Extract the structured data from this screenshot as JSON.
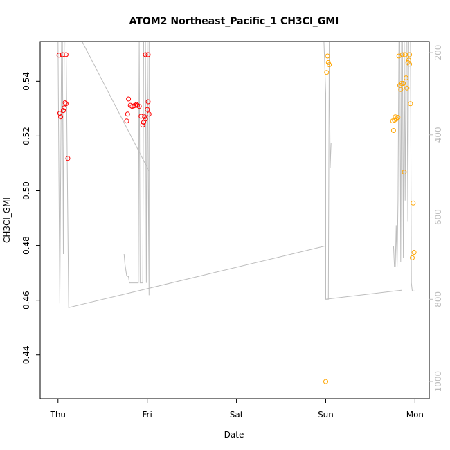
{
  "chart_data": {
    "type": "scatter",
    "title": "ATOM2 Northeast_Pacific_1 CH3Cl_GMI",
    "xlabel": "Date",
    "ylabel": "CH3Cl_GMI",
    "x_ticks": [
      "Thu",
      "Fri",
      "Sat",
      "Sun",
      "Mon"
    ],
    "xlim_days": [
      -0.2,
      4.16
    ],
    "ylim": [
      0.424,
      0.5545
    ],
    "y_ticks": [
      0.44,
      0.46,
      0.48,
      0.5,
      0.52,
      0.54
    ],
    "y2_label_ticks": [
      200,
      400,
      600,
      800,
      1000
    ],
    "y2lim": [
      1042,
      173
    ],
    "series": [
      {
        "color": "#ff0000",
        "points": [
          [
            0.01,
            0.5495
          ],
          [
            0.05,
            0.5497
          ],
          [
            0.09,
            0.5497
          ],
          [
            0.02,
            0.5283
          ],
          [
            0.03,
            0.527
          ],
          [
            0.06,
            0.5293
          ],
          [
            0.07,
            0.5303
          ],
          [
            0.08,
            0.5322
          ],
          [
            0.09,
            0.5318
          ],
          [
            0.11,
            0.5118
          ],
          [
            0.98,
            0.5497
          ],
          [
            1.01,
            0.5497
          ],
          [
            0.77,
            0.5255
          ],
          [
            0.78,
            0.528
          ],
          [
            0.79,
            0.5335
          ],
          [
            0.81,
            0.5312
          ],
          [
            0.83,
            0.5308
          ],
          [
            0.85,
            0.531
          ],
          [
            0.87,
            0.5312
          ],
          [
            0.88,
            0.5315
          ],
          [
            0.89,
            0.5312
          ],
          [
            0.91,
            0.5308
          ],
          [
            0.93,
            0.5272
          ],
          [
            0.95,
            0.524
          ],
          [
            0.96,
            0.525
          ],
          [
            0.97,
            0.527
          ],
          [
            0.98,
            0.5262
          ],
          [
            1.0,
            0.5297
          ],
          [
            1.01,
            0.5325
          ],
          [
            1.02,
            0.528
          ]
        ]
      },
      {
        "color": "#ffa500",
        "points": [
          [
            3.02,
            0.5492
          ],
          [
            3.03,
            0.5468
          ],
          [
            3.04,
            0.546
          ],
          [
            3.01,
            0.5432
          ],
          [
            3.0,
            0.4303
          ],
          [
            3.75,
            0.5255
          ],
          [
            3.76,
            0.522
          ],
          [
            3.77,
            0.5258
          ],
          [
            3.78,
            0.527
          ],
          [
            3.79,
            0.5262
          ],
          [
            3.81,
            0.5268
          ],
          [
            3.82,
            0.5492
          ],
          [
            3.83,
            0.5385
          ],
          [
            3.84,
            0.537
          ],
          [
            3.85,
            0.5392
          ],
          [
            3.86,
            0.5497
          ],
          [
            3.87,
            0.5392
          ],
          [
            3.88,
            0.5068
          ],
          [
            3.89,
            0.5497
          ],
          [
            3.9,
            0.5412
          ],
          [
            3.91,
            0.5375
          ],
          [
            3.92,
            0.5468
          ],
          [
            3.93,
            0.5477
          ],
          [
            3.94,
            0.5497
          ],
          [
            3.94,
            0.5462
          ],
          [
            3.95,
            0.5318
          ],
          [
            3.97,
            0.4755
          ],
          [
            3.98,
            0.4955
          ],
          [
            3.99,
            0.4775
          ]
        ]
      }
    ],
    "pressure_line": {
      "color": "#bdbdbd",
      "points": [
        [
          0.0,
          173
        ],
        [
          0.01,
          500
        ],
        [
          0.02,
          700
        ],
        [
          0.03,
          810
        ],
        [
          0.04,
          300
        ],
        [
          0.05,
          173
        ],
        [
          0.06,
          173
        ],
        [
          0.07,
          500
        ],
        [
          0.08,
          690
        ],
        [
          0.09,
          173
        ],
        [
          0.11,
          173
        ],
        [
          0.12,
          820
        ],
        [
          0.27,
          173
        ],
        [
          0.97,
          500
        ],
        [
          0.98,
          173
        ],
        [
          0.99,
          700
        ],
        [
          1.0,
          173
        ],
        [
          1.01,
          480
        ],
        [
          1.02,
          790
        ],
        [
          1.02,
          173
        ],
        [
          1.03,
          173
        ],
        [
          1.03,
          430
        ],
        [
          0.27,
          173
        ],
        [
          1.0,
          488
        ],
        [
          0.74,
          690
        ],
        [
          0.74,
          715
        ],
        [
          0.76,
          715
        ],
        [
          0.77,
          743
        ],
        [
          0.79,
          743
        ],
        [
          0.8,
          760
        ],
        [
          0.9,
          760
        ],
        [
          0.91,
          730
        ],
        [
          0.92,
          760
        ],
        [
          0.95,
          760
        ]
      ],
      "segments": [
        [
          [
            0.0,
            173
          ],
          [
            0.01,
            500
          ],
          [
            0.02,
            810
          ],
          [
            0.04,
            173
          ],
          [
            0.05,
            173
          ],
          [
            0.06,
            690
          ],
          [
            0.07,
            173
          ],
          [
            0.09,
            173
          ],
          [
            0.12,
            820
          ],
          [
            3.0,
            670
          ]
        ],
        [
          [
            0.27,
            173
          ],
          [
            1.02,
            488
          ]
        ],
        [
          [
            0.74,
            690
          ],
          [
            0.75,
            715
          ],
          [
            0.77,
            743
          ],
          [
            0.79,
            745
          ],
          [
            0.8,
            760
          ],
          [
            0.9,
            760
          ],
          [
            0.91,
            173
          ],
          [
            0.92,
            760
          ],
          [
            0.95,
            760
          ],
          [
            0.96,
            173
          ],
          [
            0.98,
            173
          ],
          [
            0.99,
            760
          ],
          [
            1.0,
            173
          ],
          [
            1.01,
            480
          ],
          [
            1.02,
            790
          ],
          [
            1.02,
            173
          ]
        ],
        [
          [
            2.98,
            173
          ],
          [
            3.0,
            300
          ],
          [
            3.0,
            800
          ],
          [
            3.03,
            800
          ],
          [
            3.04,
            173
          ],
          [
            3.05,
            480
          ],
          [
            3.06,
            420
          ]
        ],
        [
          [
            3.0,
            800
          ],
          [
            3.77,
            780
          ],
          [
            3.85,
            778
          ]
        ],
        [
          [
            3.76,
            670
          ],
          [
            3.77,
            720
          ],
          [
            3.78,
            720
          ],
          [
            3.79,
            620
          ],
          [
            3.8,
            720
          ],
          [
            3.81,
            560
          ],
          [
            3.82,
            173
          ],
          [
            3.83,
            173
          ],
          [
            3.84,
            710
          ],
          [
            3.85,
            173
          ],
          [
            3.86,
            173
          ],
          [
            3.87,
            700
          ],
          [
            3.88,
            173
          ],
          [
            3.89,
            560
          ],
          [
            3.9,
            173
          ],
          [
            3.91,
            173
          ],
          [
            3.92,
            610
          ],
          [
            3.93,
            173
          ],
          [
            3.95,
            173
          ],
          [
            3.96,
            760
          ],
          [
            3.97,
            780
          ],
          [
            3.98,
            780
          ],
          [
            4.0,
            780
          ]
        ]
      ]
    },
    "grid": false,
    "legend": "none"
  }
}
